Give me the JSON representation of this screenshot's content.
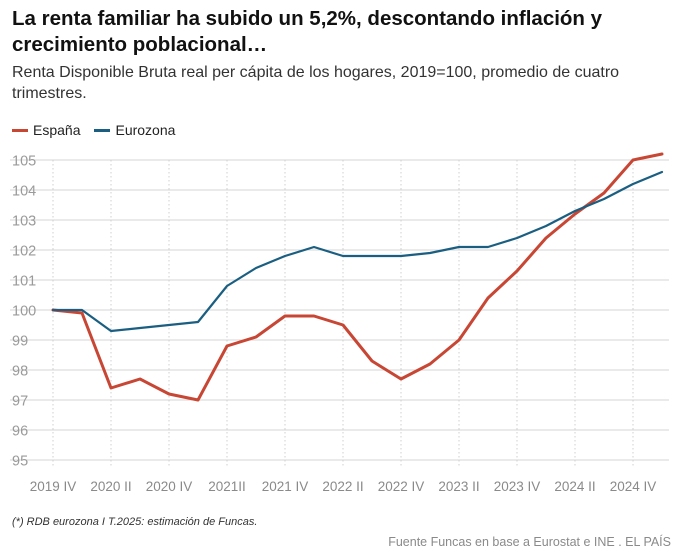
{
  "title": "La renta familiar ha subido un 5,2%, descontando inflación y crecimiento poblacional…",
  "subtitle": "Renta Disponible Bruta real per cápita de los hogares, 2019=100, promedio de cuatro trimestres.",
  "footnote": "(*) RDB eurozona I T.2025: estimación de Funcas.",
  "source": "Fuente Funcas en base a Eurostat e INE . EL PAÍS",
  "chart_data": {
    "type": "line",
    "x": [
      "2019 IV",
      "2020 I",
      "2020 II",
      "2020 III",
      "2020 IV",
      "2021 I",
      "2021 II",
      "2021 III",
      "2021 IV",
      "2022 I",
      "2022 II",
      "2022 III",
      "2022 IV",
      "2023 I",
      "2023 II",
      "2023 III",
      "2023 IV",
      "2024 I",
      "2024 II",
      "2024 III",
      "2024 IV",
      "2025 I"
    ],
    "tick_labels": [
      "2019 IV",
      "2020 II",
      "2020 IV",
      "2021II",
      "2021 IV",
      "2022 II",
      "2022 IV",
      "2023 II",
      "2023 IV",
      "2024 II",
      "2024 IV"
    ],
    "ylim": [
      95,
      105
    ],
    "yticks": [
      95,
      96,
      97,
      98,
      99,
      100,
      101,
      102,
      103,
      104,
      105
    ],
    "grid": true,
    "legend_position": "top-left",
    "series": [
      {
        "name": "España",
        "color": "#c84634",
        "values": [
          100.0,
          99.9,
          97.4,
          97.7,
          97.2,
          97.0,
          98.8,
          99.1,
          99.8,
          99.8,
          99.5,
          98.3,
          97.7,
          98.2,
          99.0,
          100.4,
          101.3,
          102.4,
          103.2,
          103.9,
          105.0,
          105.2
        ]
      },
      {
        "name": "Eurozona",
        "color": "#1a5f82",
        "values": [
          100.0,
          100.0,
          99.3,
          99.4,
          99.5,
          99.6,
          100.8,
          101.4,
          101.8,
          102.1,
          101.8,
          101.8,
          101.8,
          101.9,
          102.1,
          102.1,
          102.4,
          102.8,
          103.3,
          103.7,
          104.2,
          104.6
        ]
      }
    ]
  }
}
